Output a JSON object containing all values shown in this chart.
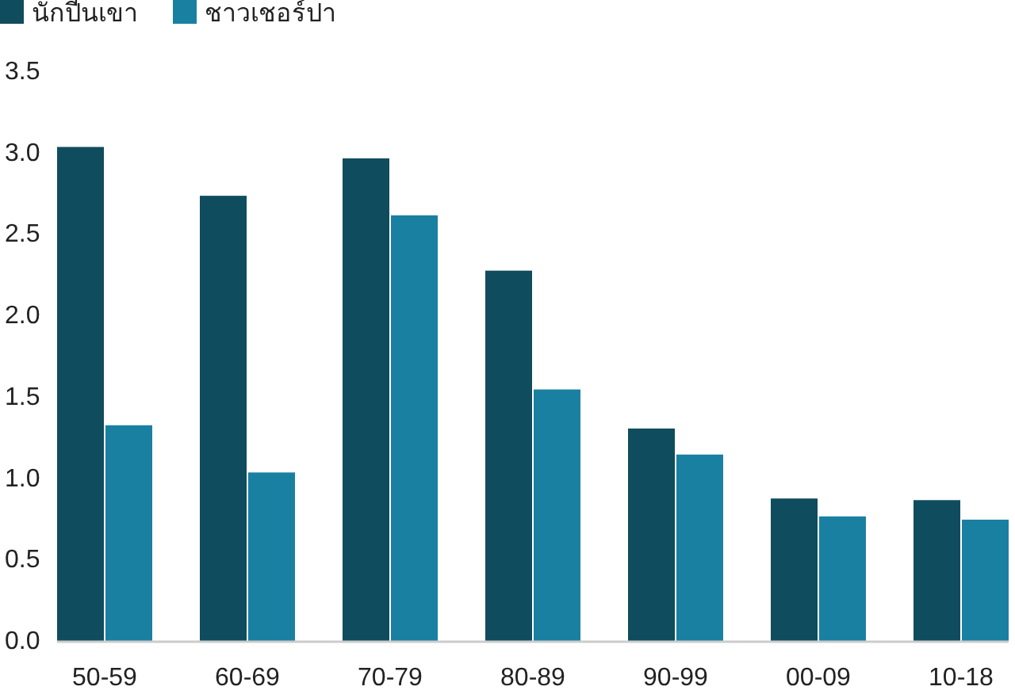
{
  "chart_data": {
    "type": "bar",
    "categories": [
      "50-59",
      "60-69",
      "70-79",
      "80-89",
      "90-99",
      "00-09",
      "10-18"
    ],
    "series": [
      {
        "name": "นักปีนเขา",
        "color": "#0f4c5e",
        "values": [
          3.04,
          2.74,
          2.97,
          2.28,
          1.31,
          0.88,
          0.87
        ]
      },
      {
        "name": "ชาวเชอร์ปา",
        "color": "#1a80a1",
        "values": [
          1.33,
          1.04,
          2.62,
          1.55,
          1.15,
          0.77,
          0.75
        ]
      }
    ],
    "ylim": [
      0,
      3.5
    ],
    "yticks": [
      {
        "value": 0,
        "label": "0.0"
      },
      0.5,
      {
        "value": 1,
        "label": "1.0"
      },
      1.5,
      {
        "value": 2,
        "label": "2.0"
      },
      2.5,
      {
        "value": 3,
        "label": "3.0"
      },
      3.5
    ],
    "legend": "top left"
  }
}
